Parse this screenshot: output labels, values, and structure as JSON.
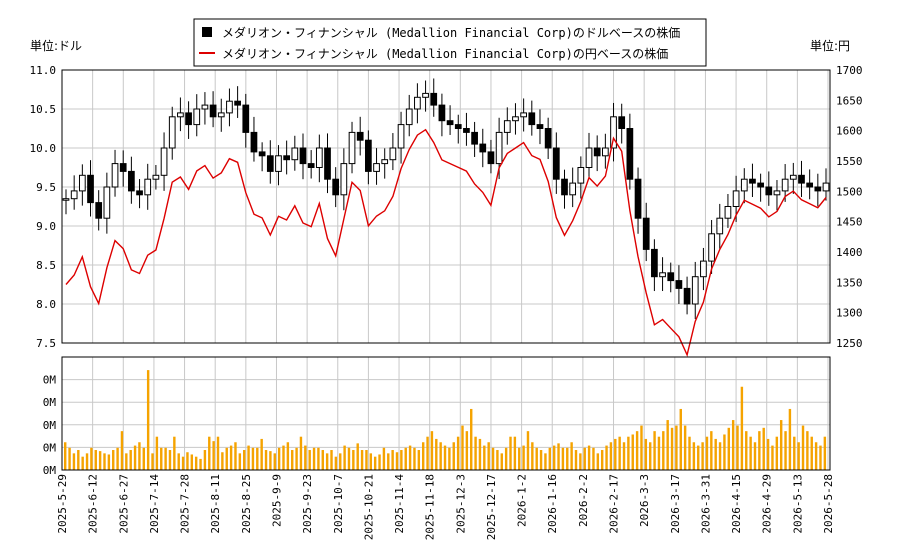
{
  "chart_data": [
    {
      "type": "candlestick+line",
      "legend": [
        {
          "name": "メダリオン・フィナンシャル (Medallion Financial Corp)のドルベースの株価",
          "color": "#000000",
          "marker": "square"
        },
        {
          "name": "メダリオン・フィナンシャル (Medallion Financial Corp)の円ベースの株価",
          "color": "#dd0000",
          "marker": "line"
        }
      ],
      "left_unit": "単位:ドル",
      "right_unit": "単位:円",
      "left_ylim": [
        7.5,
        11.0
      ],
      "left_ticks": [
        "7.5",
        "8.0",
        "8.5",
        "9.0",
        "9.5",
        "10.0",
        "10.5",
        "11.0"
      ],
      "right_ylim": [
        1250,
        1700
      ],
      "right_ticks": [
        "1250",
        "1300",
        "1350",
        "1400",
        "1450",
        "1500",
        "1550",
        "1600",
        "1650",
        "1700"
      ],
      "grid": true,
      "x_ticks": [
        "2025-5-29",
        "2025-6-12",
        "2025-6-27",
        "2025-7-14",
        "2025-7-28",
        "2025-8-11",
        "2025-8-25",
        "2025-9-9",
        "2025-9-23",
        "2025-10-7",
        "2025-10-21",
        "2025-11-4",
        "2025-11-18",
        "2025-12-3",
        "2025-12-17",
        "2026-1-2",
        "2026-1-16",
        "2026-2-2",
        "2026-2-17",
        "2026-3-3",
        "2026-3-17",
        "2026-3-31",
        "2026-4-15",
        "2026-4-29",
        "2026-5-13",
        "2026-5-28"
      ],
      "usd_close_approx": [
        9.35,
        9.45,
        9.65,
        9.3,
        9.1,
        9.5,
        9.8,
        9.7,
        9.45,
        9.4,
        9.6,
        9.65,
        10.0,
        10.4,
        10.45,
        10.3,
        10.5,
        10.55,
        10.4,
        10.45,
        10.6,
        10.55,
        10.2,
        9.95,
        9.9,
        9.7,
        9.9,
        9.85,
        10.0,
        9.8,
        9.75,
        10.0,
        9.6,
        9.4,
        9.8,
        10.2,
        10.1,
        9.7,
        9.8,
        9.85,
        10.0,
        10.3,
        10.5,
        10.65,
        10.7,
        10.55,
        10.35,
        10.3,
        10.25,
        10.2,
        10.05,
        9.95,
        9.8,
        10.2,
        10.35,
        10.4,
        10.45,
        10.3,
        10.25,
        10.0,
        9.6,
        9.4,
        9.55,
        9.75,
        10.0,
        9.9,
        10.0,
        10.4,
        10.25,
        9.6,
        9.1,
        8.7,
        8.35,
        8.4,
        8.3,
        8.2,
        8.0,
        8.35,
        8.55,
        8.9,
        9.1,
        9.25,
        9.45,
        9.6,
        9.55,
        9.5,
        9.4,
        9.45,
        9.6,
        9.65,
        9.55,
        9.5,
        9.45,
        9.55
      ]
    },
    {
      "type": "bar",
      "name": "volume",
      "y_ticks": [
        "0M",
        "0M",
        "0M",
        "0M",
        "0M"
      ],
      "color": "#f5a300",
      "relative_values": [
        0.25,
        0.2,
        0.15,
        0.18,
        0.12,
        0.15,
        0.2,
        0.18,
        0.17,
        0.15,
        0.14,
        0.18,
        0.2,
        0.35,
        0.15,
        0.18,
        0.22,
        0.25,
        0.2,
        0.9,
        0.15,
        0.3,
        0.2,
        0.2,
        0.18,
        0.3,
        0.15,
        0.12,
        0.16,
        0.14,
        0.12,
        0.1,
        0.18,
        0.3,
        0.26,
        0.3,
        0.16,
        0.2,
        0.22,
        0.25,
        0.15,
        0.18,
        0.22,
        0.2,
        0.2,
        0.28,
        0.18,
        0.17,
        0.15,
        0.2,
        0.22,
        0.25,
        0.18,
        0.2,
        0.3,
        0.22,
        0.18,
        0.2,
        0.2,
        0.18,
        0.15,
        0.18,
        0.12,
        0.15,
        0.22,
        0.2,
        0.18,
        0.24,
        0.18,
        0.18,
        0.15,
        0.12,
        0.14,
        0.2,
        0.15,
        0.18,
        0.16,
        0.18,
        0.2,
        0.22,
        0.2,
        0.18,
        0.25,
        0.3,
        0.35,
        0.28,
        0.25,
        0.22,
        0.2,
        0.25,
        0.3,
        0.4,
        0.35,
        0.55,
        0.3,
        0.28,
        0.22,
        0.25,
        0.2,
        0.18,
        0.15,
        0.2,
        0.3,
        0.3,
        0.2,
        0.22,
        0.35,
        0.25,
        0.2,
        0.18,
        0.15,
        0.2,
        0.22,
        0.24,
        0.2,
        0.2,
        0.25,
        0.18,
        0.15,
        0.2,
        0.22,
        0.2,
        0.15,
        0.18,
        0.22,
        0.25,
        0.28,
        0.3,
        0.25,
        0.3,
        0.32,
        0.35,
        0.4,
        0.28,
        0.25,
        0.35,
        0.3,
        0.35,
        0.45,
        0.38,
        0.4,
        0.55,
        0.4,
        0.3,
        0.25,
        0.22,
        0.25,
        0.3,
        0.35,
        0.28,
        0.25,
        0.32,
        0.38,
        0.45,
        0.4,
        0.75,
        0.35,
        0.3,
        0.25,
        0.35,
        0.38,
        0.28,
        0.22,
        0.3,
        0.45,
        0.35,
        0.55,
        0.3,
        0.25,
        0.4,
        0.35,
        0.3,
        0.25,
        0.22,
        0.3
      ]
    }
  ]
}
